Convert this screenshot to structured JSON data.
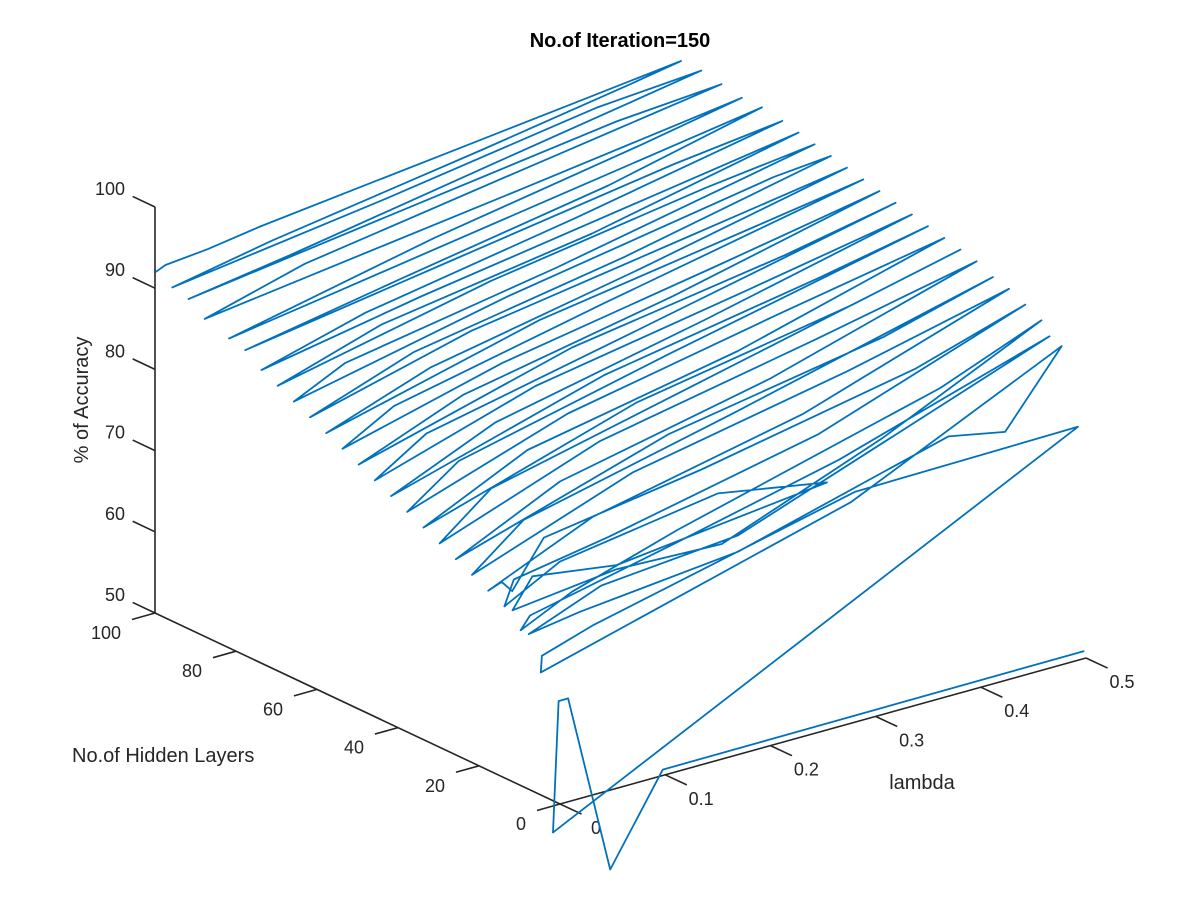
{
  "chart_data": {
    "type": "line3d",
    "title": "No.of Iteration=150",
    "xlabel": "lambda",
    "ylabel": "No.of Hidden Layers",
    "zlabel": "% of Accuracy",
    "xlim": [
      0,
      0.5
    ],
    "ylim": [
      0,
      100
    ],
    "zlim": [
      50,
      100
    ],
    "xticks": [
      0,
      0.1,
      0.2,
      0.3,
      0.4,
      0.5
    ],
    "yticks": [
      0,
      20,
      40,
      60,
      80,
      100
    ],
    "zticks": [
      50,
      60,
      70,
      80,
      90,
      100
    ],
    "xtick_labels": [
      "0",
      "0.1",
      "0.2",
      "0.3",
      "0.4",
      "0.5"
    ],
    "ytick_labels": [
      "0",
      "20",
      "40",
      "60",
      "80",
      "100"
    ],
    "ztick_labels": [
      "50",
      "60",
      "70",
      "80",
      "90",
      "100"
    ],
    "grid": false,
    "legend": "none",
    "color": "#0072BD",
    "series": [
      {
        "points": [
          [
            0.001,
            100,
            92
          ],
          [
            0.01,
            100,
            92.5
          ],
          [
            0.05,
            100,
            93
          ],
          [
            0.1,
            100,
            94
          ],
          [
            0.2,
            100,
            95.5
          ],
          [
            0.3,
            100,
            97
          ],
          [
            0.4,
            100,
            98.5
          ],
          [
            0.5,
            100,
            100
          ],
          [
            0.44,
            97,
            100
          ],
          [
            0.3,
            97,
            97
          ],
          [
            0.2,
            97,
            95
          ],
          [
            0.1,
            97,
            93
          ],
          [
            0.001,
            96,
            91
          ],
          [
            0.2,
            95,
            95
          ],
          [
            0.4,
            95,
            99
          ],
          [
            0.5,
            95,
            100
          ],
          [
            0.3,
            93,
            96.5
          ],
          [
            0.1,
            92,
            92.5
          ],
          [
            0.001,
            92,
            90.5
          ],
          [
            0.2,
            91,
            94.5
          ],
          [
            0.4,
            90,
            98.5
          ],
          [
            0.5,
            90,
            99.5
          ],
          [
            0.3,
            89,
            96
          ],
          [
            0.1,
            89,
            92
          ],
          [
            0.001,
            88,
            89
          ],
          [
            0.15,
            87,
            92
          ],
          [
            0.3,
            86,
            95
          ],
          [
            0.5,
            85,
            99
          ],
          [
            0.4,
            84,
            97
          ],
          [
            0.2,
            83,
            93
          ],
          [
            0.001,
            82,
            88
          ],
          [
            0.1,
            82,
            90
          ],
          [
            0.3,
            81,
            94.5
          ],
          [
            0.5,
            80,
            99
          ],
          [
            0.35,
            79,
            95
          ],
          [
            0.15,
            78,
            91
          ],
          [
            0.001,
            78,
            87.5
          ],
          [
            0.2,
            77,
            92
          ],
          [
            0.4,
            76,
            96.5
          ],
          [
            0.5,
            75,
            98.5
          ],
          [
            0.3,
            74,
            94
          ],
          [
            0.1,
            74,
            89.5
          ],
          [
            0.001,
            74,
            86
          ],
          [
            0.15,
            73,
            90
          ],
          [
            0.35,
            72,
            94.5
          ],
          [
            0.5,
            71,
            98
          ],
          [
            0.3,
            70,
            93
          ],
          [
            0.1,
            70,
            89
          ],
          [
            0.001,
            70,
            85
          ],
          [
            0.2,
            69,
            91
          ],
          [
            0.4,
            68,
            95.5
          ],
          [
            0.5,
            67,
            97.5
          ],
          [
            0.25,
            66,
            91.5
          ],
          [
            0.05,
            66,
            87
          ],
          [
            0.001,
            66,
            84
          ],
          [
            0.2,
            65,
            90
          ],
          [
            0.45,
            64,
            96
          ],
          [
            0.5,
            63,
            97
          ],
          [
            0.3,
            62,
            92
          ],
          [
            0.1,
            62,
            87.5
          ],
          [
            0.001,
            62,
            83
          ],
          [
            0.15,
            61,
            88.5
          ],
          [
            0.35,
            60,
            93
          ],
          [
            0.5,
            59,
            96.5
          ],
          [
            0.3,
            58,
            91.5
          ],
          [
            0.1,
            58,
            86.5
          ],
          [
            0.001,
            58,
            82
          ],
          [
            0.2,
            57,
            89
          ],
          [
            0.4,
            56,
            93.5
          ],
          [
            0.5,
            55,
            96
          ],
          [
            0.25,
            54,
            90
          ],
          [
            0.05,
            54,
            84.5
          ],
          [
            0.001,
            54,
            81
          ],
          [
            0.15,
            53,
            86.5
          ],
          [
            0.35,
            52,
            91.5
          ],
          [
            0.5,
            51,
            95.5
          ],
          [
            0.3,
            50,
            90
          ],
          [
            0.1,
            50,
            85
          ],
          [
            0.001,
            50,
            80
          ],
          [
            0.2,
            49,
            87.5
          ],
          [
            0.4,
            48,
            92
          ],
          [
            0.5,
            47,
            95
          ],
          [
            0.25,
            46,
            88.5
          ],
          [
            0.05,
            46,
            83
          ],
          [
            0.001,
            46,
            79
          ],
          [
            0.15,
            45,
            85.5
          ],
          [
            0.35,
            44,
            90.5
          ],
          [
            0.5,
            43,
            94.5
          ],
          [
            0.3,
            42,
            89
          ],
          [
            0.1,
            42,
            83.5
          ],
          [
            0.001,
            42,
            78
          ],
          [
            0.2,
            41,
            86
          ],
          [
            0.4,
            40,
            91
          ],
          [
            0.5,
            39,
            94
          ],
          [
            0.25,
            38,
            87.5
          ],
          [
            0.05,
            38,
            81.5
          ],
          [
            0.001,
            38,
            77
          ],
          [
            0.15,
            37,
            84
          ],
          [
            0.35,
            36,
            89.5
          ],
          [
            0.5,
            35,
            93.5
          ],
          [
            0.3,
            34,
            87
          ],
          [
            0.1,
            34,
            82
          ],
          [
            0.001,
            34,
            76
          ],
          [
            0.2,
            33,
            84.5
          ],
          [
            0.4,
            32,
            89.5
          ],
          [
            0.5,
            31,
            93
          ],
          [
            0.25,
            30,
            86
          ],
          [
            0.05,
            30,
            80
          ],
          [
            0.001,
            30,
            75
          ],
          [
            0.15,
            29,
            82.5
          ],
          [
            0.35,
            28,
            88
          ],
          [
            0.5,
            27,
            92.5
          ],
          [
            0.3,
            26,
            85.5
          ],
          [
            0.1,
            26,
            80
          ],
          [
            0.001,
            26,
            74
          ],
          [
            0.2,
            25,
            82.5
          ],
          [
            0.4,
            24,
            87.5
          ],
          [
            0.5,
            23,
            91.5
          ],
          [
            0.25,
            22,
            84
          ],
          [
            0.05,
            22,
            78
          ],
          [
            0.001,
            22,
            73
          ],
          [
            0.15,
            21,
            80.5
          ],
          [
            0.35,
            20,
            86
          ],
          [
            0.5,
            19,
            91
          ],
          [
            0.3,
            18,
            83
          ],
          [
            0.1,
            18,
            77.5
          ],
          [
            0.001,
            18,
            72
          ],
          [
            0.01,
            17,
            73
          ],
          [
            0.02,
            17,
            71.5
          ],
          [
            0.05,
            17,
            77
          ],
          [
            0.2,
            17,
            80
          ],
          [
            0.4,
            16,
            85.5
          ],
          [
            0.5,
            15,
            90
          ],
          [
            0.3,
            14,
            81.5
          ],
          [
            0.1,
            14,
            76
          ],
          [
            0.01,
            14,
            74
          ],
          [
            0.001,
            14,
            71
          ],
          [
            0.05,
            13,
            75
          ],
          [
            0.2,
            13,
            78
          ],
          [
            0.3,
            12,
            76
          ],
          [
            0.1,
            12,
            73
          ],
          [
            0.02,
            12,
            74.5
          ],
          [
            0.001,
            12,
            71
          ],
          [
            0.1,
            12,
            72.5
          ],
          [
            0.2,
            12,
            72
          ],
          [
            0.35,
            11,
            80
          ],
          [
            0.5,
            11,
            89
          ],
          [
            0.4,
            10,
            84.5
          ],
          [
            0.15,
            10,
            76
          ],
          [
            0.05,
            10,
            72
          ],
          [
            0.001,
            10,
            69
          ],
          [
            0.01,
            10,
            70.5
          ],
          [
            0.15,
            10,
            74.5
          ],
          [
            0.3,
            9,
            79.5
          ],
          [
            0.5,
            9,
            87.5
          ],
          [
            0.2,
            8,
            74
          ],
          [
            0.07,
            8,
            72.5
          ],
          [
            0.001,
            8,
            69
          ],
          [
            0.05,
            8,
            70
          ],
          [
            0.2,
            8,
            72
          ],
          [
            0.4,
            8,
            79
          ],
          [
            0.45,
            7,
            78
          ],
          [
            0.5,
            6,
            87
          ],
          [
            0.3,
            6,
            75
          ],
          [
            0.001,
            5,
            65
          ],
          [
            0.002,
            5,
            67
          ],
          [
            0.05,
            5,
            69
          ],
          [
            0.3,
            5,
            76.5
          ],
          [
            0.5,
            2,
            78
          ],
          [
            0.001,
            2,
            46
          ]
        ]
      },
      {
        "points": [
          [
            0.001,
            2,
            46
          ],
          [
            0.001,
            0.6,
            62.5
          ],
          [
            0.01,
            0.6,
            62.5
          ],
          [
            0.05,
            0.6,
            40
          ],
          [
            0.1,
            0.6,
            50.5
          ],
          [
            0.5,
            0.6,
            50.7
          ]
        ]
      }
    ]
  }
}
